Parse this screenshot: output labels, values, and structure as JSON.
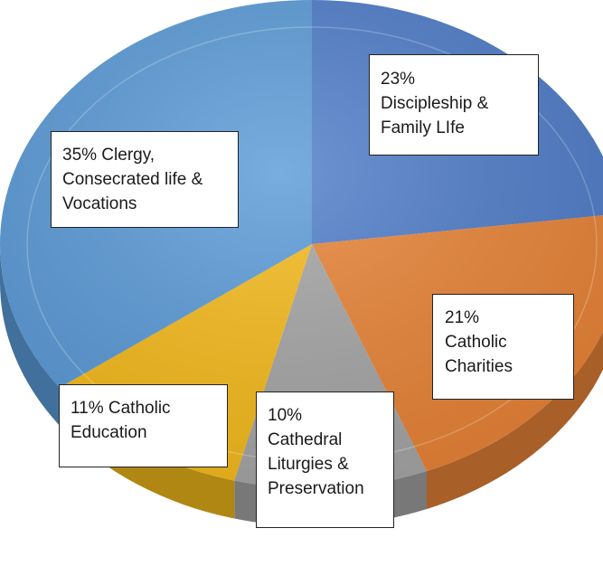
{
  "chart_data": {
    "type": "pie",
    "title": "",
    "slices": [
      {
        "label": "Discipleship & Family LIfe",
        "value": 23,
        "color": "#4f7dc9"
      },
      {
        "label": "Catholic Charities",
        "value": 21,
        "color": "#e98437"
      },
      {
        "label": "Cathedral Liturgies & Preservation",
        "value": 10,
        "color": "#a6a6a6"
      },
      {
        "label": "Catholic Education",
        "value": 11,
        "color": "#f6bb1c"
      },
      {
        "label": "Clergy, Consecrated life & Vocations",
        "value": 35,
        "color": "#5b9bd8"
      }
    ],
    "data_labels": [
      {
        "lines": [
          "23%",
          "Discipleship &",
          "Family LIfe"
        ]
      },
      {
        "lines": [
          "21%",
          "Catholic",
          "Charities"
        ]
      },
      {
        "lines": [
          "10%",
          "Cathedral",
          "Liturgies &",
          "Preservation"
        ]
      },
      {
        "lines": [
          "11% Catholic",
          "Education"
        ]
      },
      {
        "lines": [
          "35% Clergy,",
          "Consecrated life &",
          "Vocations"
        ]
      }
    ],
    "legend": "none"
  }
}
